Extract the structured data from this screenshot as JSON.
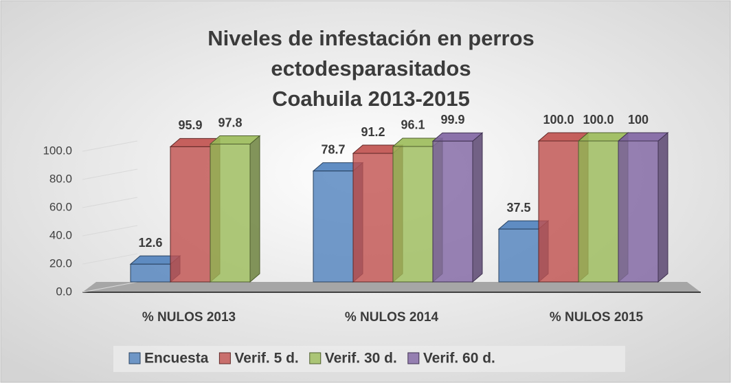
{
  "chart_data": {
    "type": "bar3d",
    "title": [
      "Niveles de infestación en perros",
      "ectodesparasitados",
      "Coahuila 2013-2015"
    ],
    "categories": [
      "% NULOS 2013",
      "% NULOS 2014",
      "% NULOS 2015"
    ],
    "series": [
      {
        "name": "Encuesta",
        "color": "#4f81bd",
        "values": [
          12.6,
          78.7,
          37.5
        ]
      },
      {
        "name": "Verif. 5 d.",
        "color": "#c0504d",
        "values": [
          95.9,
          91.2,
          100.0
        ],
        "value_labels": [
          "95.9",
          "91.2",
          "100.0"
        ]
      },
      {
        "name": "Verif. 30 d.",
        "color": "#9bbb59",
        "values": [
          97.8,
          96.1,
          100.0
        ],
        "value_labels": [
          "97.8",
          "96.1",
          "100.0"
        ]
      },
      {
        "name": "Verif. 60 d.",
        "color": "#8064a2",
        "values": [
          null,
          99.9,
          100
        ]
      }
    ],
    "ylim": [
      0,
      100
    ],
    "yticks": [
      {
        "value": 0,
        "label": "0.0"
      },
      {
        "value": 20,
        "label": "20.0"
      },
      {
        "value": 40,
        "label": "40.0"
      },
      {
        "value": 60,
        "label": "60.0"
      },
      {
        "value": 80,
        "label": "80.0"
      },
      {
        "value": 100,
        "label": "100.0"
      }
    ],
    "grid": true,
    "legend": "bottom"
  }
}
